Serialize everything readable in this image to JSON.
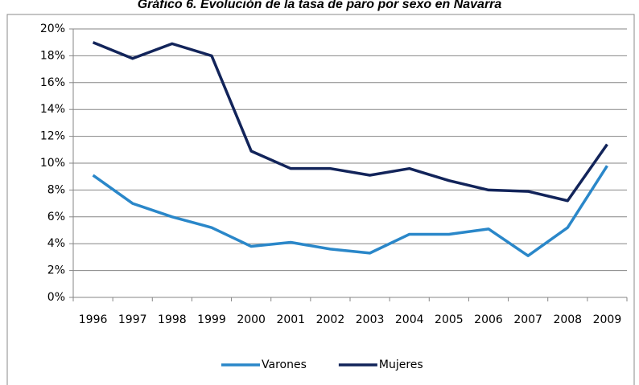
{
  "chart_data": {
    "type": "line",
    "title": "Gráfico 6. Evolución de la tasa de paro por sexo en Navarra",
    "categories": [
      "1996",
      "1997",
      "1998",
      "1999",
      "2000",
      "2001",
      "2002",
      "2003",
      "2004",
      "2005",
      "2006",
      "2007",
      "2008",
      "2009"
    ],
    "series": [
      {
        "name": "Varones",
        "color": "#2a87c9",
        "values": [
          9.1,
          7.0,
          6.0,
          5.2,
          3.8,
          4.1,
          3.6,
          3.3,
          4.7,
          4.7,
          5.1,
          3.1,
          5.2,
          9.8
        ]
      },
      {
        "name": "Mujeres",
        "color": "#12245a",
        "values": [
          19.0,
          17.8,
          18.9,
          18.0,
          10.9,
          9.6,
          9.6,
          9.1,
          9.6,
          8.7,
          8.0,
          7.9,
          7.2,
          11.4
        ]
      }
    ],
    "ylim": [
      0,
      20
    ],
    "yticks": [
      {
        "value": 0,
        "label": "0%"
      },
      {
        "value": 2,
        "label": "2%"
      },
      {
        "value": 4,
        "label": "4%"
      },
      {
        "value": 6,
        "label": "6%"
      },
      {
        "value": 8,
        "label": "8%"
      },
      {
        "value": 10,
        "label": "10%"
      },
      {
        "value": 12,
        "label": "12%"
      },
      {
        "value": 14,
        "label": "14%"
      },
      {
        "value": 16,
        "label": "16%"
      },
      {
        "value": 18,
        "label": "18%"
      },
      {
        "value": 20,
        "label": "20%"
      }
    ],
    "grid": true,
    "legend": "bottom"
  }
}
